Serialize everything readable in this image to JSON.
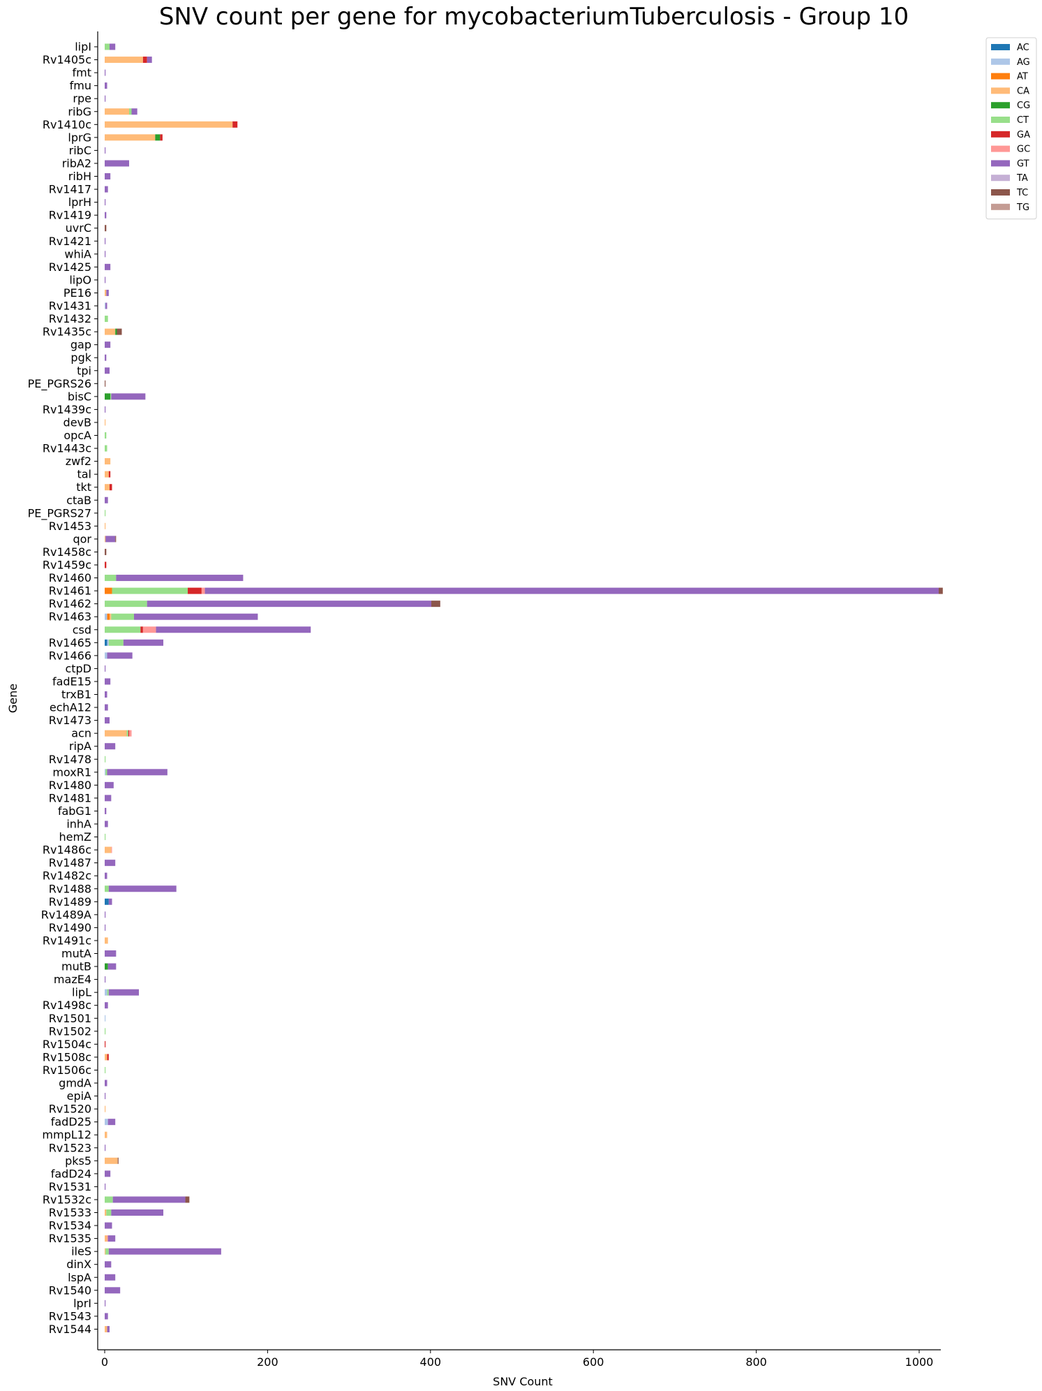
{
  "chart_data": {
    "type": "bar",
    "orientation": "horizontal",
    "stacked": true,
    "title": "SNV count per gene for mycobacteriumTuberculosis - Group 10",
    "xlabel": "SNV Count",
    "ylabel": "Gene",
    "xlim": [
      -10,
      1030
    ],
    "xticks": [
      0,
      200,
      400,
      600,
      800,
      1000
    ],
    "grid": false,
    "legend_position": "top-right",
    "series": [
      {
        "name": "AC",
        "color": "#1f77b4"
      },
      {
        "name": "AG",
        "color": "#aec7e8"
      },
      {
        "name": "AT",
        "color": "#ff7f0e"
      },
      {
        "name": "CA",
        "color": "#ffbb78"
      },
      {
        "name": "CG",
        "color": "#2ca02c"
      },
      {
        "name": "CT",
        "color": "#98df8a"
      },
      {
        "name": "GA",
        "color": "#d62728"
      },
      {
        "name": "GC",
        "color": "#ff9896"
      },
      {
        "name": "GT",
        "color": "#9467bd"
      },
      {
        "name": "TA",
        "color": "#c5b0d5"
      },
      {
        "name": "TC",
        "color": "#8c564b"
      },
      {
        "name": "TG",
        "color": "#c49c94"
      }
    ],
    "categories": [
      {
        "gene": "lipI",
        "v": {
          "CT": 6,
          "GT": 7
        }
      },
      {
        "gene": "Rv1405c",
        "v": {
          "CA": 47,
          "GA": 5,
          "GT": 6
        }
      },
      {
        "gene": "fmt",
        "v": {
          "GT": 1
        }
      },
      {
        "gene": "fmu",
        "v": {
          "GT": 3
        }
      },
      {
        "gene": "rpe",
        "v": {
          "GT": 1
        }
      },
      {
        "gene": "ribG",
        "v": {
          "CA": 30,
          "CT": 3,
          "GT": 7
        }
      },
      {
        "gene": "Rv1410c",
        "v": {
          "CA": 157,
          "GA": 6
        }
      },
      {
        "gene": "lprG",
        "v": {
          "CA": 62,
          "CG": 6,
          "GA": 3
        }
      },
      {
        "gene": "ribC",
        "v": {
          "GT": 1
        }
      },
      {
        "gene": "ribA2",
        "v": {
          "GT": 30
        }
      },
      {
        "gene": "ribH",
        "v": {
          "GT": 7
        }
      },
      {
        "gene": "Rv1417",
        "v": {
          "GT": 4
        }
      },
      {
        "gene": "lprH",
        "v": {
          "GT": 1
        }
      },
      {
        "gene": "Rv1419",
        "v": {
          "GT": 2
        }
      },
      {
        "gene": "uvrC",
        "v": {
          "TC": 2
        }
      },
      {
        "gene": "Rv1421",
        "v": {
          "GT": 1
        }
      },
      {
        "gene": "whiA",
        "v": {
          "GT": 1
        }
      },
      {
        "gene": "Rv1425",
        "v": {
          "GT": 7
        }
      },
      {
        "gene": "lipO",
        "v": {
          "GT": 1
        }
      },
      {
        "gene": "PE16",
        "v": {
          "CA": 2,
          "GT": 3
        }
      },
      {
        "gene": "Rv1431",
        "v": {
          "AG": 1,
          "GT": 2
        }
      },
      {
        "gene": "Rv1432",
        "v": {
          "CT": 4
        }
      },
      {
        "gene": "Rv1435c",
        "v": {
          "CA": 13,
          "CG": 2,
          "TC": 6
        }
      },
      {
        "gene": "gap",
        "v": {
          "GT": 7
        }
      },
      {
        "gene": "pgk",
        "v": {
          "GT": 2
        }
      },
      {
        "gene": "tpi",
        "v": {
          "GT": 6
        }
      },
      {
        "gene": "PE_PGRS26",
        "v": {
          "TC": 1
        }
      },
      {
        "gene": "bisC",
        "v": {
          "CG": 7,
          "CT": 1,
          "GT": 42
        }
      },
      {
        "gene": "Rv1439c",
        "v": {
          "GT": 1
        }
      },
      {
        "gene": "devB",
        "v": {
          "CA": 1
        }
      },
      {
        "gene": "opcA",
        "v": {
          "CT": 2
        }
      },
      {
        "gene": "Rv1443c",
        "v": {
          "CT": 3
        }
      },
      {
        "gene": "zwf2",
        "v": {
          "CA": 7
        }
      },
      {
        "gene": "tal",
        "v": {
          "CA": 5,
          "GA": 2
        }
      },
      {
        "gene": "tkt",
        "v": {
          "CA": 6,
          "GA": 3
        }
      },
      {
        "gene": "ctaB",
        "v": {
          "GT": 4
        }
      },
      {
        "gene": "PE_PGRS27",
        "v": {
          "CT": 1
        }
      },
      {
        "gene": "Rv1453",
        "v": {
          "CA": 1
        }
      },
      {
        "gene": "qor",
        "v": {
          "CA": 1,
          "TC": 1,
          "GT": 12
        }
      },
      {
        "gene": "Rv1458c",
        "v": {
          "TC": 2
        }
      },
      {
        "gene": "Rv1459c",
        "v": {
          "GA": 2
        }
      },
      {
        "gene": "Rv1460",
        "v": {
          "CT": 14,
          "GT": 156
        }
      },
      {
        "gene": "Rv1461",
        "v": {
          "AT": 9,
          "CT": 93,
          "GA": 17,
          "GC": 4,
          "GT": 901,
          "TC": 5
        }
      },
      {
        "gene": "Rv1462",
        "v": {
          "CT": 52,
          "GT": 349,
          "TC": 11
        }
      },
      {
        "gene": "Rv1463",
        "v": {
          "AG": 3,
          "AT": 3,
          "CA": 2,
          "CT": 28,
          "GT": 152
        }
      },
      {
        "gene": "csd",
        "v": {
          "CT": 44,
          "GA": 3,
          "GC": 16,
          "GT": 190
        }
      },
      {
        "gene": "Rv1465",
        "v": {
          "AC": 3,
          "AG": 2,
          "CT": 18,
          "GT": 49
        }
      },
      {
        "gene": "Rv1466",
        "v": {
          "AG": 3,
          "GT": 31
        }
      },
      {
        "gene": "ctpD",
        "v": {
          "GT": 1
        }
      },
      {
        "gene": "fadE15",
        "v": {
          "GT": 7
        }
      },
      {
        "gene": "trxB1",
        "v": {
          "GT": 3
        }
      },
      {
        "gene": "echA12",
        "v": {
          "GT": 4
        }
      },
      {
        "gene": "Rv1473",
        "v": {
          "GT": 6
        }
      },
      {
        "gene": "acn",
        "v": {
          "CA": 27,
          "CT": 2,
          "GA": 1,
          "GC": 3
        }
      },
      {
        "gene": "ripA",
        "v": {
          "GT": 13
        }
      },
      {
        "gene": "Rv1478",
        "v": {
          "CT": 1
        }
      },
      {
        "gene": "moxR1",
        "v": {
          "CT": 2,
          "AG": 1,
          "GT": 74
        }
      },
      {
        "gene": "Rv1480",
        "v": {
          "GT": 11
        }
      },
      {
        "gene": "Rv1481",
        "v": {
          "GT": 8
        }
      },
      {
        "gene": "fabG1",
        "v": {
          "GT": 2
        }
      },
      {
        "gene": "inhA",
        "v": {
          "GT": 4
        }
      },
      {
        "gene": "hemZ",
        "v": {
          "CT": 1
        }
      },
      {
        "gene": "Rv1486c",
        "v": {
          "CA": 8,
          "GC": 1
        }
      },
      {
        "gene": "Rv1487",
        "v": {
          "GT": 13
        }
      },
      {
        "gene": "Rv1482c",
        "v": {
          "GT": 3
        }
      },
      {
        "gene": "Rv1488",
        "v": {
          "CT": 5,
          "GT": 83
        }
      },
      {
        "gene": "Rv1489",
        "v": {
          "AC": 5,
          "GT": 4
        }
      },
      {
        "gene": "Rv1489A",
        "v": {
          "GT": 1
        }
      },
      {
        "gene": "Rv1490",
        "v": {
          "GT": 1
        }
      },
      {
        "gene": "Rv1491c",
        "v": {
          "CA": 4
        }
      },
      {
        "gene": "mutA",
        "v": {
          "GT": 14
        }
      },
      {
        "gene": "mutB",
        "v": {
          "CG": 4,
          "GT": 10
        }
      },
      {
        "gene": "mazE4",
        "v": {
          "GT": 1
        }
      },
      {
        "gene": "lipL",
        "v": {
          "AG": 3,
          "CT": 2,
          "GT": 37
        }
      },
      {
        "gene": "Rv1498c",
        "v": {
          "GT": 4
        }
      },
      {
        "gene": "Rv1501",
        "v": {
          "AG": 1
        }
      },
      {
        "gene": "Rv1502",
        "v": {
          "CT": 1
        }
      },
      {
        "gene": "Rv1504c",
        "v": {
          "GA": 1
        }
      },
      {
        "gene": "Rv1508c",
        "v": {
          "CA": 3,
          "GA": 2
        }
      },
      {
        "gene": "Rv1506c",
        "v": {
          "CT": 1
        }
      },
      {
        "gene": "gmdA",
        "v": {
          "GT": 3
        }
      },
      {
        "gene": "epiA",
        "v": {
          "GT": 1
        }
      },
      {
        "gene": "Rv1520",
        "v": {
          "CA": 1
        }
      },
      {
        "gene": "fadD25",
        "v": {
          "AG": 4,
          "GT": 9
        }
      },
      {
        "gene": "mmpL12",
        "v": {
          "CA": 3
        }
      },
      {
        "gene": "Rv1523",
        "v": {
          "GT": 1
        }
      },
      {
        "gene": "pks5",
        "v": {
          "CA": 16,
          "TC": 1
        }
      },
      {
        "gene": "fadD24",
        "v": {
          "GT": 7
        }
      },
      {
        "gene": "Rv1531",
        "v": {
          "GT": 1
        }
      },
      {
        "gene": "Rv1532c",
        "v": {
          "CT": 10,
          "GT": 89,
          "TC": 5
        }
      },
      {
        "gene": "Rv1533",
        "v": {
          "CT": 6,
          "CA": 2,
          "GT": 64
        }
      },
      {
        "gene": "Rv1534",
        "v": {
          "GT": 9
        }
      },
      {
        "gene": "Rv1535",
        "v": {
          "CA": 3,
          "GC": 1,
          "GT": 9
        }
      },
      {
        "gene": "ileS",
        "v": {
          "CT": 4,
          "CA": 1,
          "GT": 138
        }
      },
      {
        "gene": "dinX",
        "v": {
          "GT": 8
        }
      },
      {
        "gene": "lspA",
        "v": {
          "GT": 13
        }
      },
      {
        "gene": "Rv1540",
        "v": {
          "GT": 19
        }
      },
      {
        "gene": "lprI",
        "v": {
          "GT": 1
        }
      },
      {
        "gene": "Rv1543",
        "v": {
          "GT": 4
        }
      },
      {
        "gene": "Rv1544",
        "v": {
          "CA": 3,
          "GT": 3
        }
      }
    ]
  }
}
